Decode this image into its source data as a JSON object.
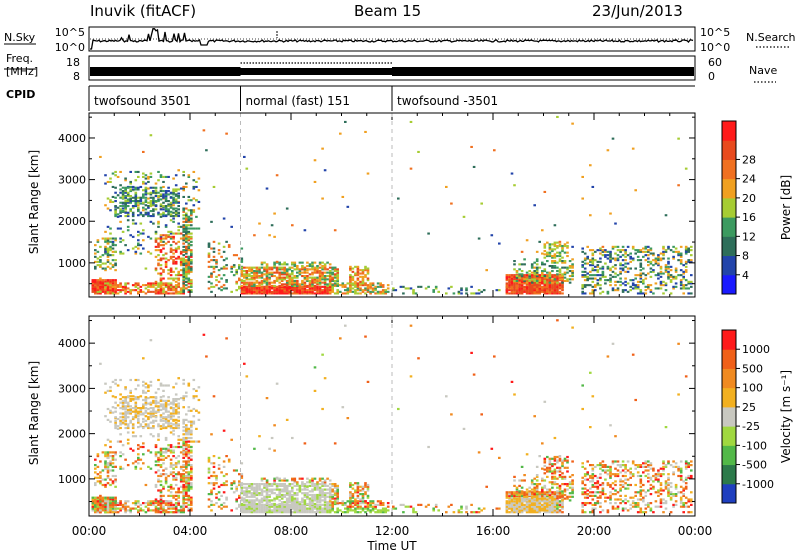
{
  "header": {
    "station": "Inuvik (fitACF)",
    "beam": "Beam 15",
    "date": "23/Jun/2013"
  },
  "panels": {
    "nsky_label": "N.Sky",
    "nsky_ticks": [
      "10^5",
      "10^0"
    ],
    "nsearch_label": "N.Search",
    "nsearch_ticks": [
      "10^5",
      "10^0"
    ],
    "freq_label_line1": "Freq.",
    "freq_label_line2": "[MHz]",
    "freq_ticks": [
      "18",
      "8"
    ],
    "nave_label": "Nave",
    "nave_ticks": [
      "60",
      "0"
    ],
    "cpid_label": "CPID",
    "cpid_segments": [
      {
        "label": "twofsound 3501",
        "start": 0,
        "end": 6
      },
      {
        "label": "normal (fast) 151",
        "start": 6,
        "end": 12
      },
      {
        "label": "twofsound -3501",
        "start": 12,
        "end": 24
      }
    ]
  },
  "chart_data": [
    {
      "type": "heatmap",
      "name": "power",
      "ylabel": "Slant Range [km]",
      "yticks": [
        "1000",
        "2000",
        "3000",
        "4000"
      ],
      "ylim": [
        180,
        4600
      ],
      "colorbar_label": "Power [dB]",
      "colorbar_ticks": [
        "4",
        "8",
        "12",
        "16",
        "20",
        "24",
        "28"
      ],
      "colors": [
        "#1a1aff",
        "#2244aa",
        "#2e6e5a",
        "#3c9a60",
        "#a6cc33",
        "#f0a020",
        "#f07020",
        "#e84a1e",
        "#ff1a1a"
      ]
    },
    {
      "type": "heatmap",
      "name": "velocity",
      "ylabel": "Slant Range [km]",
      "yticks": [
        "1000",
        "2000",
        "3000",
        "4000"
      ],
      "ylim": [
        180,
        4600
      ],
      "colorbar_label": "Velocity [m s⁻¹]",
      "colorbar_ticks": [
        "1000",
        "500",
        "100",
        "25",
        "-25",
        "-100",
        "-500",
        "-1000"
      ],
      "colors": [
        "#1f3fbf",
        "#2c7a4a",
        "#52b848",
        "#a0d840",
        "#c8c8c0",
        "#f2b020",
        "#f08a20",
        "#f06018",
        "#ff1a1a"
      ]
    }
  ],
  "x_axis": {
    "label": "Time UT",
    "ticks": [
      "00:00",
      "04:00",
      "08:00",
      "12:00",
      "16:00",
      "20:00",
      "00:00"
    ],
    "range_hours": [
      0,
      24
    ]
  }
}
